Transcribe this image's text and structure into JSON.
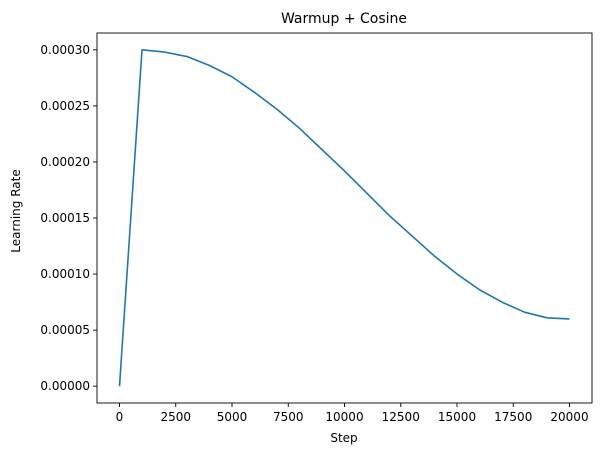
{
  "chart_data": {
    "type": "line",
    "title": "Warmup + Cosine",
    "xlabel": "Step",
    "ylabel": "Learning Rate",
    "xlim": [
      -1000,
      21000
    ],
    "ylim": [
      -1.5e-05,
      0.000315
    ],
    "xticks": [
      0,
      2500,
      5000,
      7500,
      10000,
      12500,
      15000,
      17500,
      20000
    ],
    "xtick_labels": [
      "0",
      "2500",
      "5000",
      "7500",
      "10000",
      "12500",
      "15000",
      "17500",
      "20000"
    ],
    "yticks": [
      0,
      5e-05,
      0.0001,
      0.00015,
      0.0002,
      0.00025,
      0.0003
    ],
    "ytick_labels": [
      "0.00000",
      "0.00005",
      "0.00010",
      "0.00015",
      "0.00020",
      "0.00025",
      "0.00030"
    ],
    "grid": false,
    "series": [
      {
        "color": "#1f77b4",
        "x": [
          0,
          1000,
          2000,
          3000,
          4000,
          5000,
          6000,
          7000,
          8000,
          9000,
          10000,
          11000,
          12000,
          13000,
          14000,
          15000,
          16000,
          17000,
          18000,
          19000,
          20000
        ],
        "y": [
          0.0,
          0.0003,
          0.000298,
          0.000294,
          0.000286,
          0.000276,
          0.000262,
          0.000247,
          0.00023,
          0.000211,
          0.000192,
          0.000172,
          0.000152,
          0.000134,
          0.000116,
          0.0001,
          8.6e-05,
          7.5e-05,
          6.6e-05,
          6.1e-05,
          6e-05
        ]
      }
    ]
  }
}
